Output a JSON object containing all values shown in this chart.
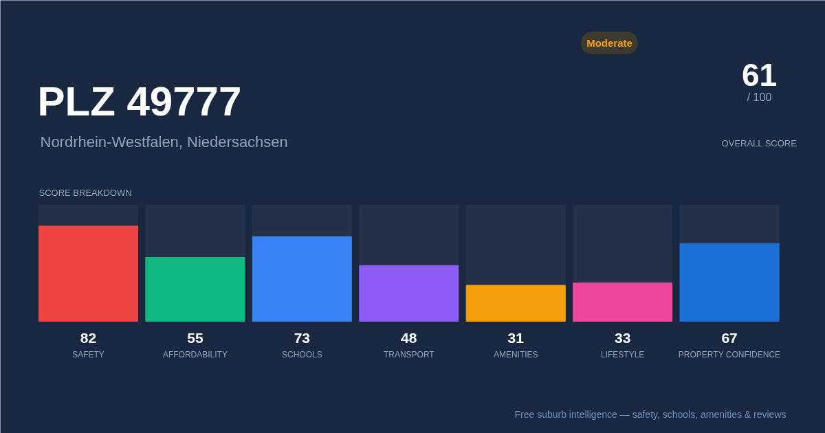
{
  "chart_data": {
    "type": "bar",
    "title": "PLZ 49777",
    "subtitle": "Nordrhein-Westfalen, Niedersachsen",
    "categories": [
      "SAFETY",
      "AFFORDABILITY",
      "SCHOOLS",
      "TRANSPORT",
      "AMENITIES",
      "LIFESTYLE",
      "PROPERTY CONFIDENCE"
    ],
    "values": [
      82,
      55,
      73,
      48,
      31,
      33,
      67
    ],
    "colors": [
      "#ef4444",
      "#10b981",
      "#3b82f6",
      "#8b5cf6",
      "#f59e0b",
      "#ec4899",
      "#1d6fd8"
    ],
    "ylim": [
      0,
      100
    ],
    "data_labels": true,
    "tick_labels": "x",
    "annotations": [
      "SCORE BREAKDOWN",
      "Moderate",
      "61",
      "/ 100",
      "OVERALL SCORE",
      "Free suburb intelligence — safety, schools, amenities & reviews"
    ]
  }
}
